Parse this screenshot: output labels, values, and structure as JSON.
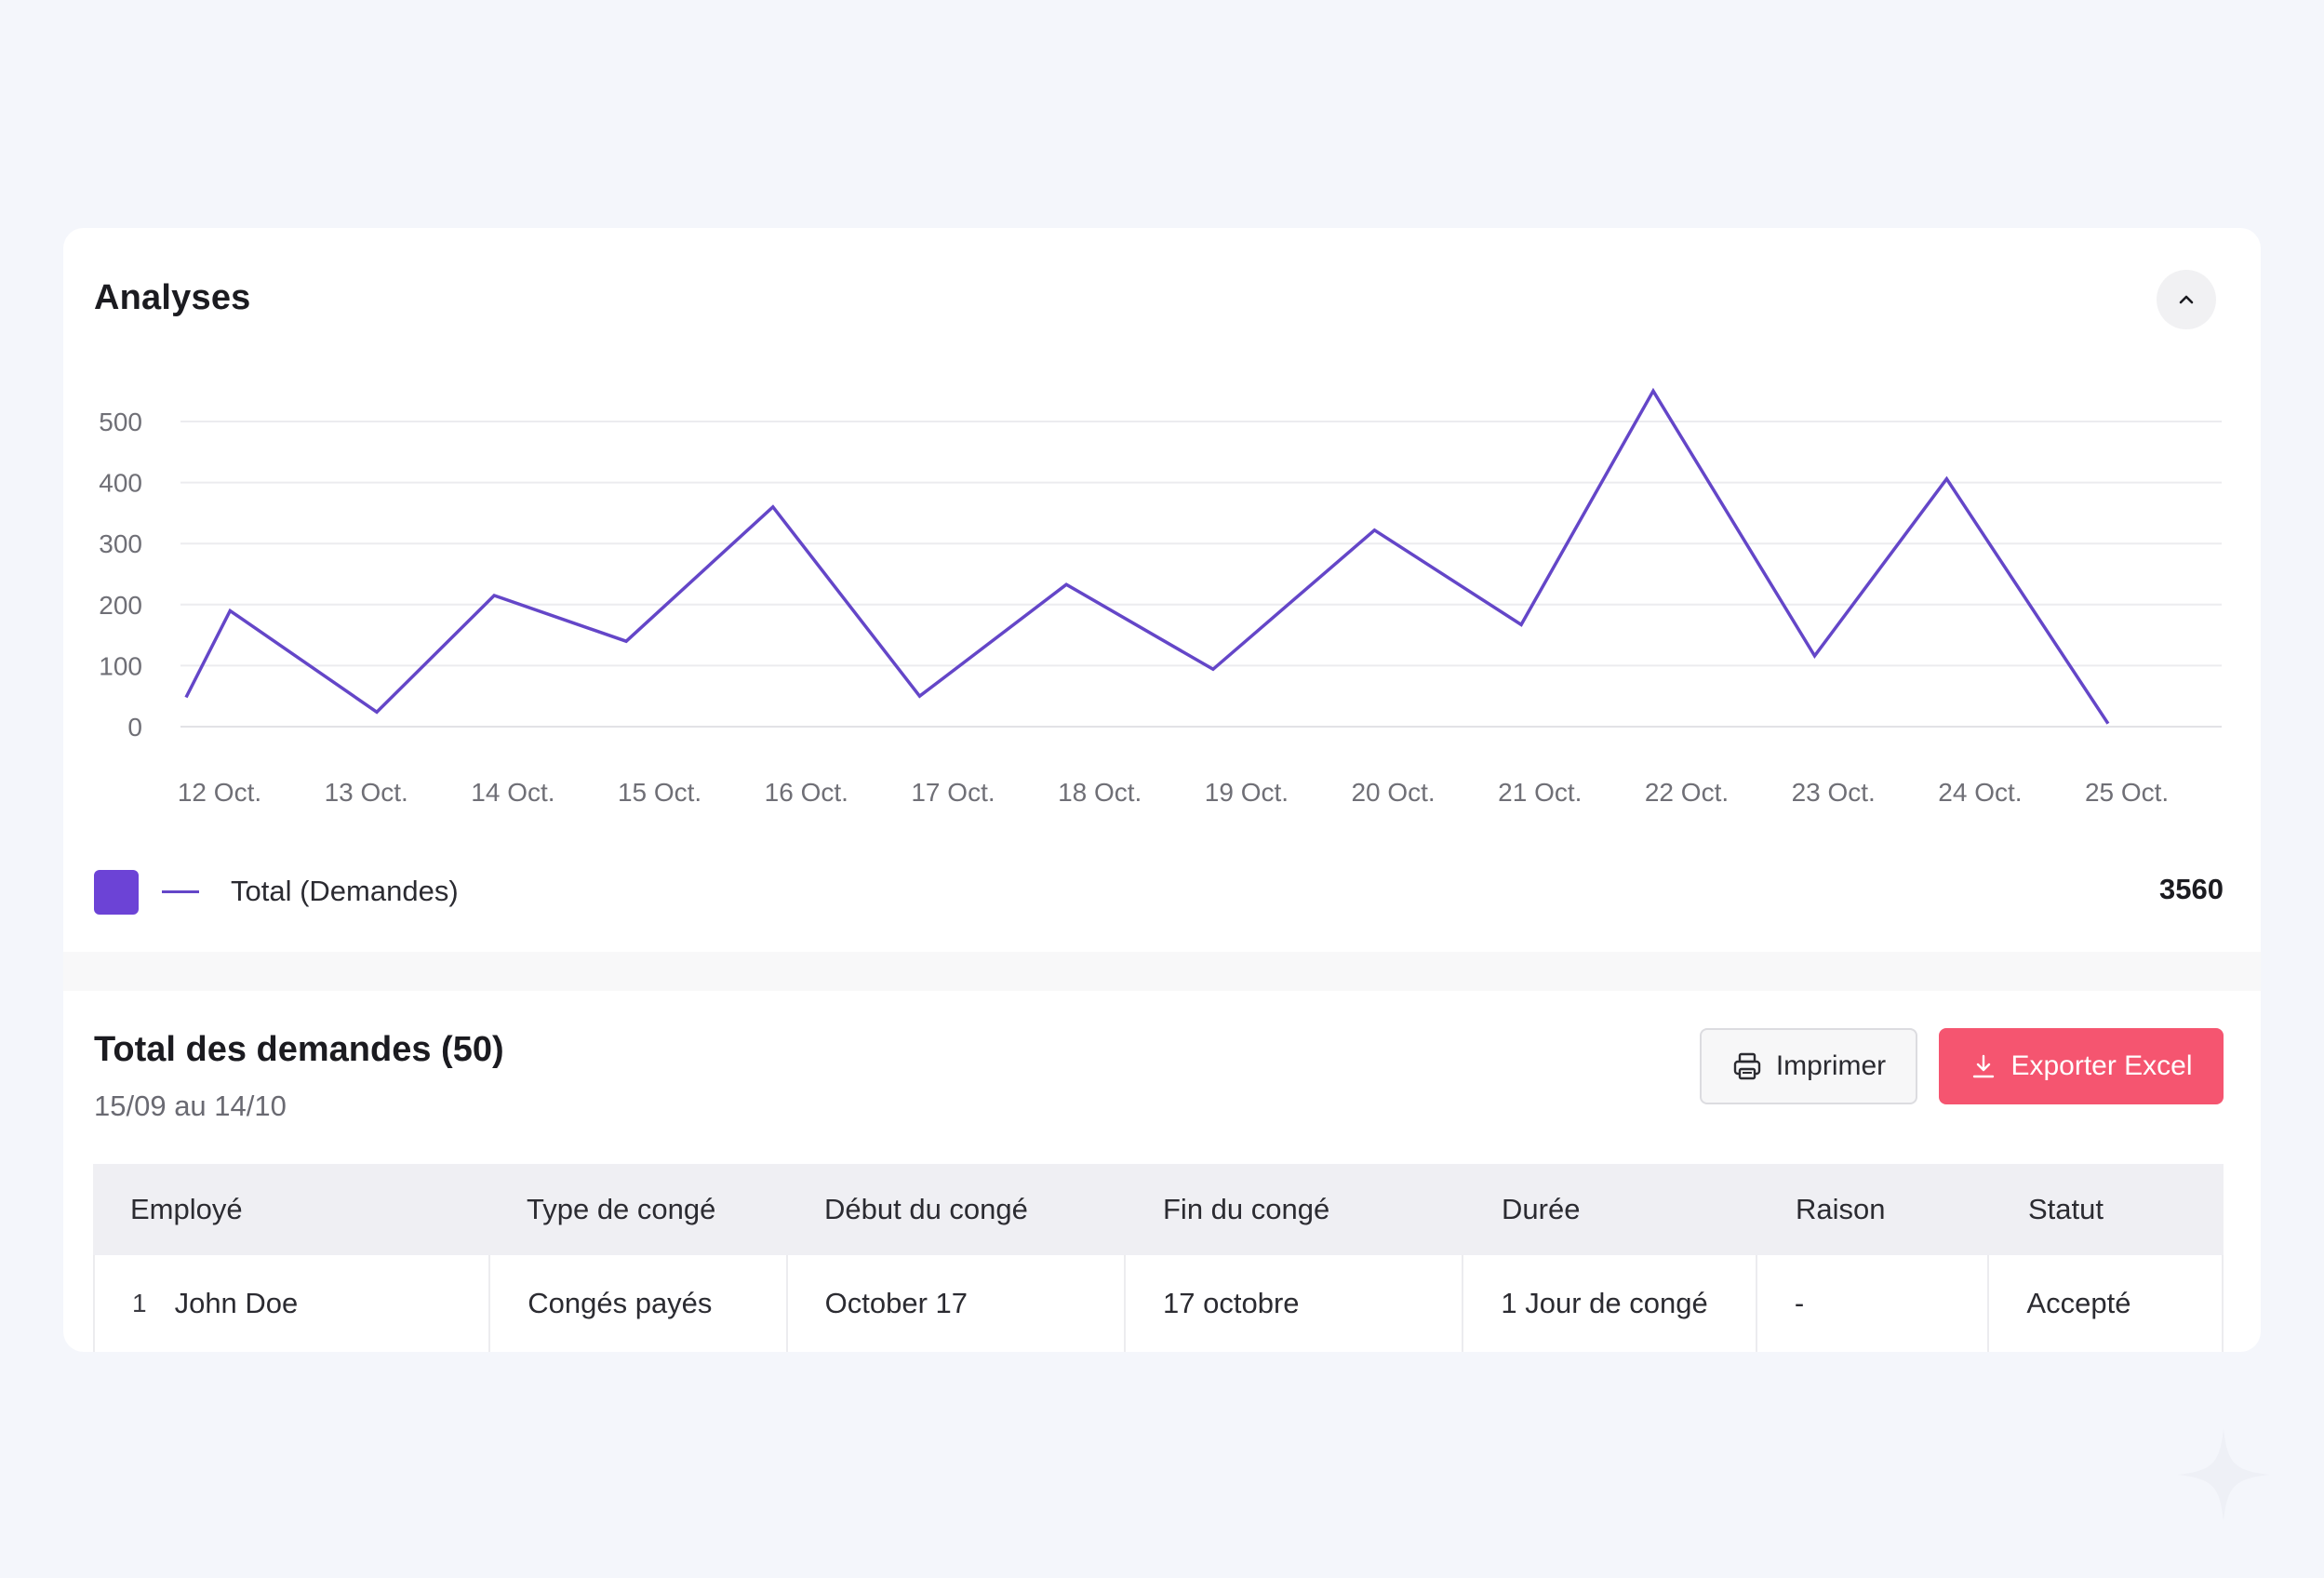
{
  "analyses": {
    "title": "Analyses",
    "collapse_icon": "chevron-up-icon"
  },
  "chart_data": {
    "type": "line",
    "title": "",
    "xlabel": "",
    "ylabel": "",
    "ylim": [
      0,
      500
    ],
    "y_ticks": [
      0,
      100,
      200,
      300,
      400,
      500
    ],
    "grid": true,
    "categories": [
      "12 Oct.",
      "13 Oct.",
      "14 Oct.",
      "15 Oct.",
      "16 Oct.",
      "17 Oct.",
      "18 Oct.",
      "19 Oct.",
      "20 Oct.",
      "21 Oct.",
      "22 Oct.",
      "23 Oct.",
      "24 Oct.",
      "25 Oct."
    ],
    "x": [
      0,
      0.3,
      1.3,
      2.1,
      3.0,
      4.0,
      5.0,
      6.0,
      7.0,
      8.1,
      9.1,
      10.0,
      11.1,
      12.0,
      13.1
    ],
    "series": [
      {
        "name": "Total (Demandes)",
        "color": "#6446c8",
        "values": [
          48,
          190,
          24,
          215,
          140,
          360,
          50,
          233,
          94,
          322,
          167,
          550,
          116,
          406,
          5
        ]
      }
    ],
    "legend_position": "bottom-left",
    "total": "3560"
  },
  "table": {
    "title": "Total des demandes (50)",
    "subtitle": "15/09 au 14/10",
    "print_label": "Imprimer",
    "print_icon": "printer-icon",
    "export_label": "Exporter Excel",
    "export_icon": "download-icon",
    "accent_color": "#f55570",
    "headers": [
      "Employé",
      "Type de congé",
      "Début du congé",
      "Fin du congé",
      "Durée",
      "Raison",
      "Statut"
    ],
    "rows": [
      {
        "num": "1",
        "employee": "John Doe",
        "type": "Congés payés",
        "start": "October 17",
        "end": "17 octobre",
        "duration": "1 Jour de congé",
        "reason": "-",
        "status": "Accepté"
      }
    ]
  }
}
